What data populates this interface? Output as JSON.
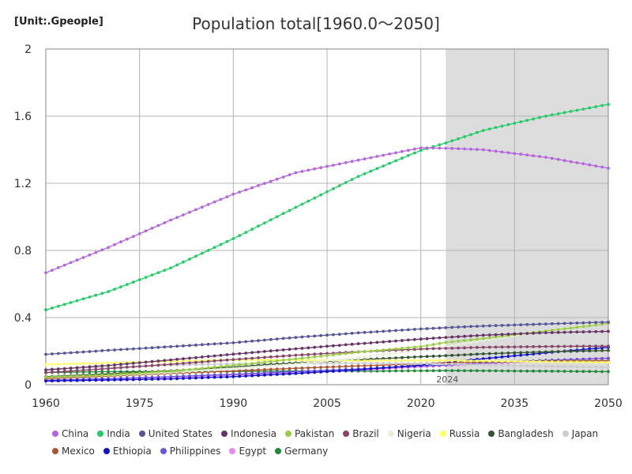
{
  "chart_data": {
    "type": "line",
    "title": "Population total[1960.0～2050]",
    "unit_label": "[Unit:.Gpeople]",
    "xlim": [
      1960,
      2050
    ],
    "ylim": [
      0,
      2
    ],
    "x_ticks": [
      1960,
      1975,
      1990,
      2005,
      2020,
      2035,
      2050
    ],
    "y_ticks": [
      0,
      0.4,
      0.8,
      1.2,
      1.6,
      2
    ],
    "forecast_start": 2024,
    "forecast_label": "2024",
    "grid": true,
    "legend_placement": "bottom",
    "anchor_years": [
      1960,
      1970,
      1980,
      1990,
      2000,
      2010,
      2020,
      2024,
      2030,
      2040,
      2050
    ],
    "series": [
      {
        "name": "China",
        "color": "#b366dd",
        "values": [
          0.667,
          0.818,
          0.981,
          1.135,
          1.263,
          1.338,
          1.411,
          1.409,
          1.4,
          1.355,
          1.29
        ]
      },
      {
        "name": "India",
        "color": "#22cc66",
        "values": [
          0.446,
          0.555,
          0.696,
          0.87,
          1.057,
          1.241,
          1.396,
          1.44,
          1.515,
          1.6,
          1.67
        ]
      },
      {
        "name": "United States",
        "color": "#555599",
        "values": [
          0.181,
          0.205,
          0.227,
          0.25,
          0.282,
          0.309,
          0.332,
          0.34,
          0.35,
          0.362,
          0.373
        ]
      },
      {
        "name": "Indonesia",
        "color": "#663366",
        "values": [
          0.088,
          0.115,
          0.148,
          0.182,
          0.214,
          0.244,
          0.272,
          0.282,
          0.295,
          0.31,
          0.318
        ]
      },
      {
        "name": "Pakistan",
        "color": "#99cc44",
        "values": [
          0.045,
          0.059,
          0.08,
          0.115,
          0.154,
          0.194,
          0.227,
          0.252,
          0.275,
          0.32,
          0.365
        ]
      },
      {
        "name": "Brazil",
        "color": "#884466",
        "values": [
          0.072,
          0.096,
          0.122,
          0.15,
          0.176,
          0.196,
          0.213,
          0.217,
          0.223,
          0.228,
          0.23
        ]
      },
      {
        "name": "Nigeria",
        "color": "#e8f0d8",
        "values": [
          0.045,
          0.056,
          0.073,
          0.095,
          0.123,
          0.16,
          0.208,
          0.228,
          0.262,
          0.32,
          0.375
        ]
      },
      {
        "name": "Russia",
        "color": "#ffff66",
        "values": [
          0.12,
          0.13,
          0.139,
          0.148,
          0.147,
          0.143,
          0.145,
          0.144,
          0.141,
          0.137,
          0.133
        ]
      },
      {
        "name": "Bangladesh",
        "color": "#335533",
        "values": [
          0.048,
          0.065,
          0.083,
          0.106,
          0.13,
          0.148,
          0.167,
          0.173,
          0.184,
          0.196,
          0.204
        ]
      },
      {
        "name": "Japan",
        "color": "#cccccc",
        "values": [
          0.092,
          0.104,
          0.117,
          0.124,
          0.127,
          0.128,
          0.126,
          0.124,
          0.119,
          0.11,
          0.104
        ]
      },
      {
        "name": "Mexico",
        "color": "#aa5533",
        "values": [
          0.037,
          0.051,
          0.068,
          0.082,
          0.098,
          0.112,
          0.125,
          0.13,
          0.136,
          0.141,
          0.143
        ]
      },
      {
        "name": "Ethiopia",
        "color": "#1111cc",
        "values": [
          0.022,
          0.028,
          0.035,
          0.048,
          0.067,
          0.089,
          0.117,
          0.132,
          0.155,
          0.19,
          0.223
        ]
      },
      {
        "name": "Philippines",
        "color": "#6655dd",
        "values": [
          0.027,
          0.036,
          0.048,
          0.062,
          0.078,
          0.094,
          0.112,
          0.117,
          0.13,
          0.145,
          0.157
        ]
      },
      {
        "name": "Egypt",
        "color": "#ee88ee",
        "values": [
          0.027,
          0.034,
          0.043,
          0.057,
          0.071,
          0.087,
          0.107,
          0.114,
          0.125,
          0.143,
          0.16
        ]
      },
      {
        "name": "Germany",
        "color": "#22883a",
        "values": [
          0.073,
          0.078,
          0.078,
          0.079,
          0.082,
          0.081,
          0.083,
          0.084,
          0.083,
          0.081,
          0.078
        ]
      }
    ]
  }
}
